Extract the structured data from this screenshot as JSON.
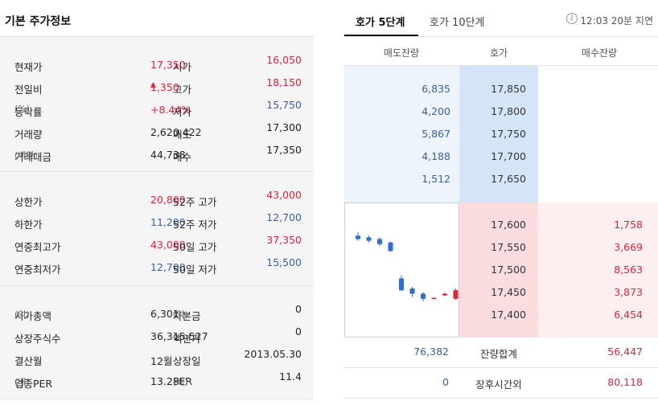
{
  "left": {
    "title": "기본 주가정보",
    "sections": [
      [
        {
          "l1": "현재가",
          "v1": "17,350",
          "c1": "red",
          "l2": "시가",
          "v2": "16,050",
          "c2": "red"
        },
        {
          "l1": "전일비",
          "v1": "1,350",
          "c1": "red",
          "tri": "▲",
          "l2": "고가",
          "v2": "18,150",
          "c2": "red"
        },
        {
          "l1": "등락률",
          "u1": "(%)",
          "v1": "+8.44%",
          "c1": "red",
          "l2": "저가",
          "v2": "15,750",
          "c2": "blue"
        },
        {
          "l1": "거래량",
          "v1": "2,620,422",
          "c1": "",
          "l2": "매도",
          "v2": "17,300",
          "c2": ""
        },
        {
          "l1": "거래대금",
          "u1": "(백만)",
          "v1": "44,738",
          "c1": "",
          "l2": "매수",
          "v2": "17,350",
          "c2": ""
        }
      ],
      [
        {
          "l1": "상한가",
          "v1": "20,800",
          "c1": "red",
          "l2": "52주 고가",
          "v2": "43,000",
          "c2": "red"
        },
        {
          "l1": "하한가",
          "v1": "11,200",
          "c1": "blue",
          "l2": "52주 저가",
          "v2": "12,700",
          "c2": "blue"
        },
        {
          "l1": "연중최고가",
          "v1": "43,000",
          "c1": "red",
          "l2": "50일 고가",
          "v2": "37,350",
          "c2": "red"
        },
        {
          "l1": "연중최저가",
          "v1": "12,700",
          "c1": "blue",
          "l2": "50일 저가",
          "v2": "15,500",
          "c2": "blue"
        }
      ],
      [
        {
          "l1": "시가총액",
          "u1": "(억)",
          "v1": "6,301",
          "c1": "",
          "l2": "자본금",
          "u2": "(억)",
          "v2": "0",
          "c2": ""
        },
        {
          "l1": "상장주식수",
          "v1": "36,315,527",
          "c1": "",
          "l2": "액면가",
          "v2": "0",
          "c2": ""
        },
        {
          "l1": "결산월",
          "v1": "12월",
          "c1": "",
          "l2": "상장일",
          "v2": "2013.05.30",
          "c2": ""
        },
        {
          "l1": "업종PER",
          "u1": "(배)",
          "v1": "13.28",
          "c1": "",
          "l2": "PER",
          "u2": "(배)",
          "v2": "11.4",
          "c2": ""
        }
      ]
    ]
  },
  "right": {
    "tabs": [
      "호가 5단계",
      "호가 10단계"
    ],
    "info_icon": "i",
    "delay_text": "12:03 20분 지연",
    "headers": [
      "매도잔량",
      "호가",
      "매수잔량"
    ],
    "asks": [
      {
        "vol": "6,835",
        "price": "17,850"
      },
      {
        "vol": "4,200",
        "price": "17,800"
      },
      {
        "vol": "5,867",
        "price": "17,750"
      },
      {
        "vol": "4,188",
        "price": "17,700"
      },
      {
        "vol": "1,512",
        "price": "17,650"
      }
    ],
    "bids": [
      {
        "price": "17,600",
        "vol": "1,758"
      },
      {
        "price": "17,550",
        "vol": "3,669"
      },
      {
        "price": "17,500",
        "vol": "8,563"
      },
      {
        "price": "17,450",
        "vol": "3,873"
      },
      {
        "price": "17,400",
        "vol": "6,454"
      }
    ],
    "summary": [
      {
        "left": "76,382",
        "label": "잔량합계",
        "right": "56,447"
      },
      {
        "left": "0",
        "label": "장후시간외",
        "right": "80,118"
      }
    ],
    "mini_chart": {
      "colors": {
        "up": "#e0243a",
        "down": "#2a6fd6"
      },
      "candles": [
        {
          "o": 17810,
          "c": 17790,
          "h": 17830,
          "l": 17780
        },
        {
          "o": 17800,
          "c": 17780,
          "h": 17810,
          "l": 17770
        },
        {
          "o": 17790,
          "c": 17760,
          "h": 17800,
          "l": 17750
        },
        {
          "o": 17770,
          "c": 17720,
          "h": 17775,
          "l": 17715
        },
        {
          "o": 17560,
          "c": 17490,
          "h": 17580,
          "l": 17485
        },
        {
          "o": 17500,
          "c": 17470,
          "h": 17510,
          "l": 17450
        },
        {
          "o": 17470,
          "c": 17440,
          "h": 17480,
          "l": 17425
        },
        {
          "o": 17445,
          "c": 17445,
          "h": 17450,
          "l": 17440
        },
        {
          "o": 17460,
          "c": 17470,
          "h": 17475,
          "l": 17455
        },
        {
          "o": 17440,
          "c": 17490,
          "h": 17500,
          "l": 17435
        }
      ]
    }
  }
}
